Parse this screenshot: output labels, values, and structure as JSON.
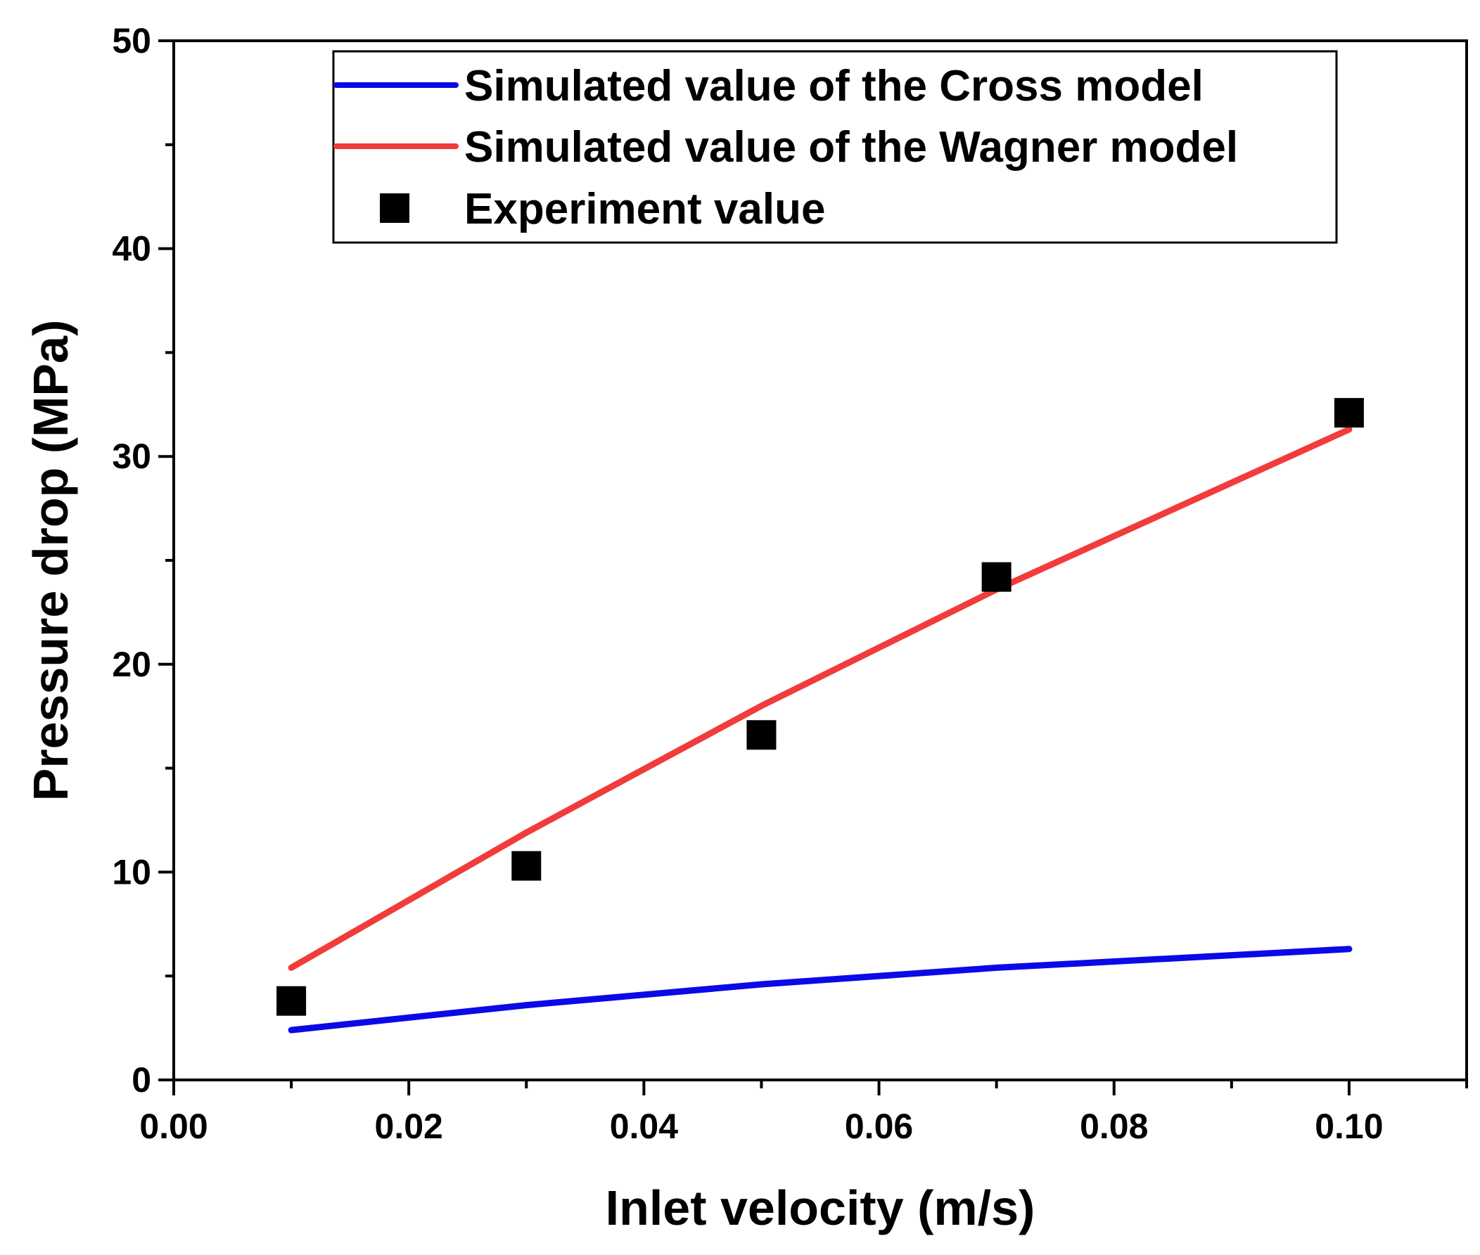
{
  "chart_data": {
    "type": "line",
    "title": "",
    "xlabel": "Inlet velocity (m/s)",
    "ylabel": "Pressure drop (MPa)",
    "xlim": [
      0,
      0.11
    ],
    "ylim": [
      0,
      50
    ],
    "x_ticks": [
      0.0,
      0.02,
      0.04,
      0.06,
      0.08,
      0.1
    ],
    "x_tick_labels": [
      "0.00",
      "0.02",
      "0.04",
      "0.06",
      "0.08",
      "0.10"
    ],
    "y_ticks": [
      0,
      10,
      20,
      30,
      40,
      50
    ],
    "y_tick_labels": [
      "0",
      "10",
      "20",
      "30",
      "40",
      "50"
    ],
    "grid": false,
    "legend_position": "top-right",
    "series": [
      {
        "name": "Simulated value of the Cross model",
        "kind": "line",
        "color": "#0a0ae6",
        "x": [
          0.01,
          0.03,
          0.05,
          0.07,
          0.1
        ],
        "values": [
          2.4,
          3.6,
          4.6,
          5.4,
          6.3
        ]
      },
      {
        "name": "Simulated value of the Wagner model",
        "kind": "line",
        "color": "#f23b3b",
        "x": [
          0.01,
          0.03,
          0.05,
          0.07,
          0.1
        ],
        "values": [
          5.4,
          11.9,
          18.0,
          23.6,
          31.3
        ]
      },
      {
        "name": "Experiment value",
        "kind": "scatter",
        "color": "#000000",
        "x": [
          0.01,
          0.03,
          0.05,
          0.07,
          0.1
        ],
        "values": [
          3.8,
          10.3,
          16.6,
          24.2,
          32.1
        ]
      }
    ]
  }
}
